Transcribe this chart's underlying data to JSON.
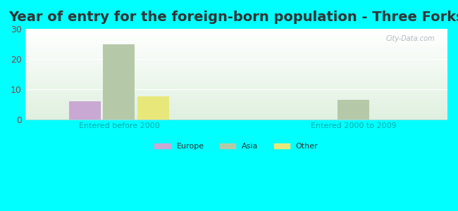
{
  "title": "Year of entry for the foreign-born population - Three Forks",
  "groups": [
    "Entered before 2000",
    "Entered 2000 to 2009"
  ],
  "series": [
    "Europe",
    "Asia",
    "Other"
  ],
  "values": {
    "Entered before 2000": [
      6,
      25,
      7.5
    ],
    "Entered 2000 to 2009": [
      0,
      6.5,
      0
    ]
  },
  "bar_colors": {
    "Europe": "#c9a8d4",
    "Asia": "#b5c9a8",
    "Other": "#e8e87a"
  },
  "background_color": "#00ffff",
  "plot_bg_gradient_top": "#dff0df",
  "plot_bg_gradient_bottom": "#ffffff",
  "ylim": [
    0,
    30
  ],
  "yticks": [
    0,
    10,
    20,
    30
  ],
  "title_fontsize": 14,
  "tick_color": "#8b4040",
  "label_color": "#00aaaa",
  "watermark": "City-Data.com",
  "bar_width": 0.22,
  "group_positions": [
    0.5,
    2.0
  ],
  "xlim": [
    -0.1,
    2.6
  ]
}
